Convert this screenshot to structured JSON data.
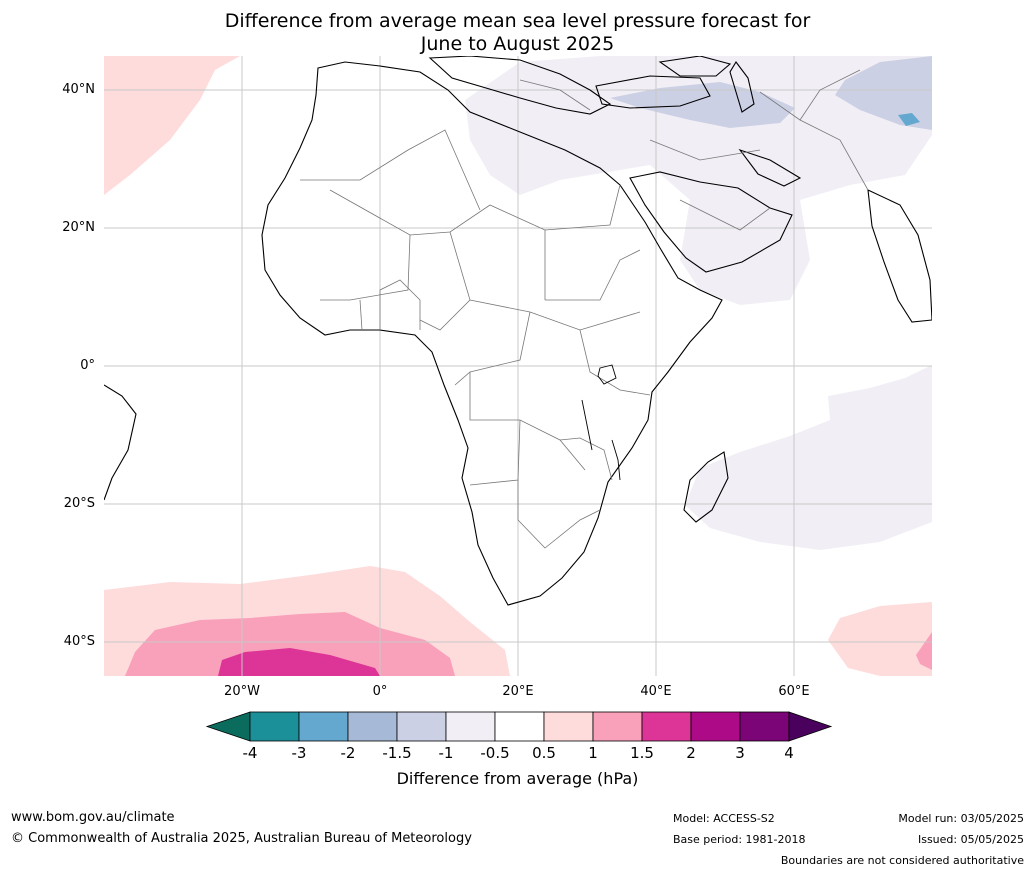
{
  "title_line1": "Difference from average mean sea level pressure forecast for",
  "title_line2": "June to August 2025",
  "lat_labels": [
    "40°N",
    "20°N",
    "0°",
    "20°S",
    "40°S"
  ],
  "lon_labels": [
    "20°W",
    "0°",
    "20°E",
    "40°E",
    "60°E"
  ],
  "colorbar": {
    "ticks": [
      "-4",
      "-3",
      "-2",
      "-1.5",
      "-1",
      "-0.5",
      "0.5",
      "1",
      "1.5",
      "2",
      "3",
      "4"
    ],
    "colors": [
      "#0b6b5c",
      "#1b9099",
      "#64a8d0",
      "#a6b9d6",
      "#ccd0e4",
      "#f1eef5",
      "#ffffff",
      "#fedcdc",
      "#f9a0ba",
      "#dd3597",
      "#ad0a88",
      "#7b0476",
      "#4a015e"
    ],
    "label": "Difference from average (hPa)"
  },
  "footer": {
    "url": "www.bom.gov.au/climate",
    "copyright": "© Commonwealth of Australia 2025, Australian Bureau of Meteorology",
    "model": "Model: ACCESS-S2",
    "base_period": "Base period: 1981-2018",
    "model_run": "Model run: 03/05/2025",
    "issued": "Issued: 05/05/2025",
    "disclaimer": "Boundaries are not considered authoritative"
  }
}
